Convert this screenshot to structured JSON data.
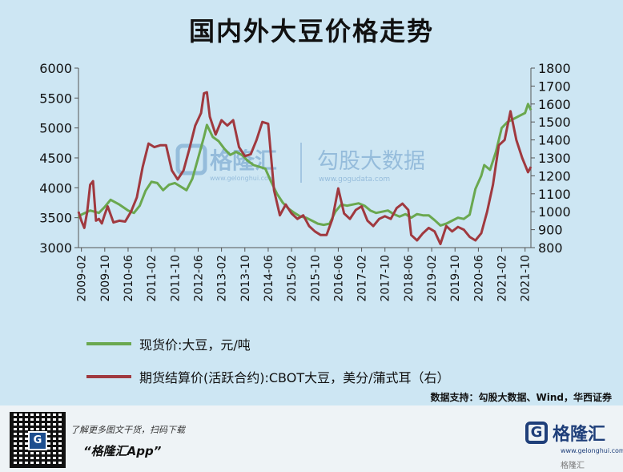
{
  "title": "国内外大豆价格走势",
  "legend": {
    "spot_label": "现货价:大豆，元/吨",
    "futures_label": "期货结算价(活跃合约):CBOT大豆，美分/蒲式耳（右）"
  },
  "source": "数据支持：勾股大数据、Wind，华西证券",
  "watermark": {
    "brand": "格隆汇",
    "brand_url": "www.gelonghui.com",
    "partner": "勾股大数据",
    "partner_url": "www.gogudata.com"
  },
  "footer": {
    "promo": "了解更多图文干货，扫码下载",
    "app": "“格隆汇App”",
    "logo_text": "格隆汇",
    "logo_url": "www.gelonghui.com",
    "logo_small": "格隆汇",
    "qr_icon": "G"
  },
  "colors": {
    "background": "#cde6f3",
    "spot": "#6aa84f",
    "futures": "#a0393f"
  },
  "chart_data": {
    "type": "line",
    "x_start": "2009-01",
    "x_end": "2021-12",
    "x_tick_labels": [
      "2009-02",
      "2009-10",
      "2010-06",
      "2011-02",
      "2011-10",
      "2012-06",
      "2013-02",
      "2013-10",
      "2014-06",
      "2015-02",
      "2015-10",
      "2016-06",
      "2017-02",
      "2017-10",
      "2018-06",
      "2019-02",
      "2019-10",
      "2020-06",
      "2021-02",
      "2021-10"
    ],
    "y_left": {
      "min": 3000,
      "max": 6000,
      "ticks": [
        3000,
        3500,
        4000,
        4500,
        5000,
        5500,
        6000
      ]
    },
    "y_right": {
      "min": 800,
      "max": 1800,
      "ticks": [
        800,
        900,
        1000,
        1100,
        1200,
        1300,
        1400,
        1500,
        1600,
        1700,
        1800
      ]
    },
    "series": [
      {
        "name": "现货价:大豆，元/吨",
        "axis": "left",
        "points": [
          [
            "2009-01",
            3500
          ],
          [
            "2009-02",
            3550
          ],
          [
            "2009-05",
            3620
          ],
          [
            "2009-08",
            3580
          ],
          [
            "2009-10",
            3680
          ],
          [
            "2009-12",
            3800
          ],
          [
            "2010-03",
            3720
          ],
          [
            "2010-06",
            3620
          ],
          [
            "2010-08",
            3580
          ],
          [
            "2010-10",
            3700
          ],
          [
            "2010-12",
            3950
          ],
          [
            "2011-02",
            4100
          ],
          [
            "2011-04",
            4080
          ],
          [
            "2011-06",
            3960
          ],
          [
            "2011-08",
            4050
          ],
          [
            "2011-10",
            4080
          ],
          [
            "2011-12",
            4020
          ],
          [
            "2012-02",
            3960
          ],
          [
            "2012-04",
            4150
          ],
          [
            "2012-06",
            4500
          ],
          [
            "2012-08",
            4850
          ],
          [
            "2012-09",
            5050
          ],
          [
            "2012-11",
            4850
          ],
          [
            "2013-01",
            4780
          ],
          [
            "2013-03",
            4650
          ],
          [
            "2013-05",
            4550
          ],
          [
            "2013-07",
            4600
          ],
          [
            "2013-09",
            4550
          ],
          [
            "2013-11",
            4450
          ],
          [
            "2014-01",
            4380
          ],
          [
            "2014-03",
            4350
          ],
          [
            "2014-05",
            4320
          ],
          [
            "2014-07",
            4100
          ],
          [
            "2014-09",
            3900
          ],
          [
            "2014-11",
            3750
          ],
          [
            "2015-01",
            3650
          ],
          [
            "2015-03",
            3580
          ],
          [
            "2015-05",
            3520
          ],
          [
            "2015-07",
            3500
          ],
          [
            "2015-09",
            3450
          ],
          [
            "2015-11",
            3400
          ],
          [
            "2016-01",
            3380
          ],
          [
            "2016-03",
            3400
          ],
          [
            "2016-05",
            3600
          ],
          [
            "2016-07",
            3720
          ],
          [
            "2016-09",
            3700
          ],
          [
            "2016-11",
            3720
          ],
          [
            "2017-01",
            3740
          ],
          [
            "2017-03",
            3700
          ],
          [
            "2017-05",
            3620
          ],
          [
            "2017-07",
            3580
          ],
          [
            "2017-09",
            3600
          ],
          [
            "2017-11",
            3620
          ],
          [
            "2018-01",
            3560
          ],
          [
            "2018-03",
            3520
          ],
          [
            "2018-05",
            3560
          ],
          [
            "2018-07",
            3500
          ],
          [
            "2018-09",
            3560
          ],
          [
            "2018-11",
            3540
          ],
          [
            "2019-01",
            3540
          ],
          [
            "2019-03",
            3460
          ],
          [
            "2019-05",
            3370
          ],
          [
            "2019-07",
            3400
          ],
          [
            "2019-09",
            3450
          ],
          [
            "2019-11",
            3500
          ],
          [
            "2020-01",
            3480
          ],
          [
            "2020-03",
            3550
          ],
          [
            "2020-05",
            3980
          ],
          [
            "2020-07",
            4200
          ],
          [
            "2020-08",
            4380
          ],
          [
            "2020-10",
            4300
          ],
          [
            "2020-12",
            4600
          ],
          [
            "2021-02",
            5000
          ],
          [
            "2021-04",
            5100
          ],
          [
            "2021-06",
            5150
          ],
          [
            "2021-08",
            5200
          ],
          [
            "2021-10",
            5250
          ],
          [
            "2021-11",
            5400
          ],
          [
            "2021-12",
            5300
          ]
        ]
      },
      {
        "name": "期货结算价(活跃合约):CBOT大豆，美分/蒲式耳（右）",
        "axis": "right",
        "points": [
          [
            "2009-01",
            1000
          ],
          [
            "2009-02",
            950
          ],
          [
            "2009-03",
            910
          ],
          [
            "2009-04",
            1000
          ],
          [
            "2009-05",
            1150
          ],
          [
            "2009-06",
            1170
          ],
          [
            "2009-07",
            950
          ],
          [
            "2009-08",
            960
          ],
          [
            "2009-09",
            935
          ],
          [
            "2009-10",
            985
          ],
          [
            "2009-11",
            1030
          ],
          [
            "2010-01",
            940
          ],
          [
            "2010-03",
            950
          ],
          [
            "2010-05",
            945
          ],
          [
            "2010-07",
            1000
          ],
          [
            "2010-09",
            1080
          ],
          [
            "2010-11",
            1250
          ],
          [
            "2011-01",
            1380
          ],
          [
            "2011-03",
            1360
          ],
          [
            "2011-05",
            1370
          ],
          [
            "2011-07",
            1370
          ],
          [
            "2011-09",
            1230
          ],
          [
            "2011-11",
            1180
          ],
          [
            "2012-01",
            1230
          ],
          [
            "2012-03",
            1350
          ],
          [
            "2012-05",
            1480
          ],
          [
            "2012-07",
            1550
          ],
          [
            "2012-08",
            1660
          ],
          [
            "2012-09",
            1665
          ],
          [
            "2012-10",
            1530
          ],
          [
            "2012-12",
            1430
          ],
          [
            "2013-02",
            1510
          ],
          [
            "2013-04",
            1480
          ],
          [
            "2013-06",
            1510
          ],
          [
            "2013-08",
            1360
          ],
          [
            "2013-10",
            1310
          ],
          [
            "2013-12",
            1320
          ],
          [
            "2014-02",
            1400
          ],
          [
            "2014-04",
            1500
          ],
          [
            "2014-06",
            1490
          ],
          [
            "2014-08",
            1120
          ],
          [
            "2014-10",
            980
          ],
          [
            "2014-12",
            1040
          ],
          [
            "2015-02",
            990
          ],
          [
            "2015-04",
            960
          ],
          [
            "2015-06",
            980
          ],
          [
            "2015-08",
            920
          ],
          [
            "2015-10",
            890
          ],
          [
            "2015-12",
            870
          ],
          [
            "2016-02",
            870
          ],
          [
            "2016-04",
            960
          ],
          [
            "2016-06",
            1130
          ],
          [
            "2016-08",
            990
          ],
          [
            "2016-10",
            960
          ],
          [
            "2016-12",
            1010
          ],
          [
            "2017-02",
            1030
          ],
          [
            "2017-04",
            950
          ],
          [
            "2017-06",
            920
          ],
          [
            "2017-08",
            960
          ],
          [
            "2017-10",
            975
          ],
          [
            "2017-12",
            960
          ],
          [
            "2018-02",
            1020
          ],
          [
            "2018-04",
            1045
          ],
          [
            "2018-06",
            1010
          ],
          [
            "2018-07",
            870
          ],
          [
            "2018-09",
            840
          ],
          [
            "2018-11",
            880
          ],
          [
            "2019-01",
            910
          ],
          [
            "2019-03",
            890
          ],
          [
            "2019-05",
            820
          ],
          [
            "2019-07",
            920
          ],
          [
            "2019-09",
            890
          ],
          [
            "2019-11",
            915
          ],
          [
            "2020-01",
            900
          ],
          [
            "2020-03",
            860
          ],
          [
            "2020-05",
            840
          ],
          [
            "2020-07",
            880
          ],
          [
            "2020-09",
            1000
          ],
          [
            "2020-11",
            1150
          ],
          [
            "2021-01",
            1370
          ],
          [
            "2021-03",
            1400
          ],
          [
            "2021-05",
            1560
          ],
          [
            "2021-07",
            1400
          ],
          [
            "2021-09",
            1300
          ],
          [
            "2021-11",
            1220
          ],
          [
            "2021-12",
            1250
          ]
        ]
      }
    ]
  }
}
